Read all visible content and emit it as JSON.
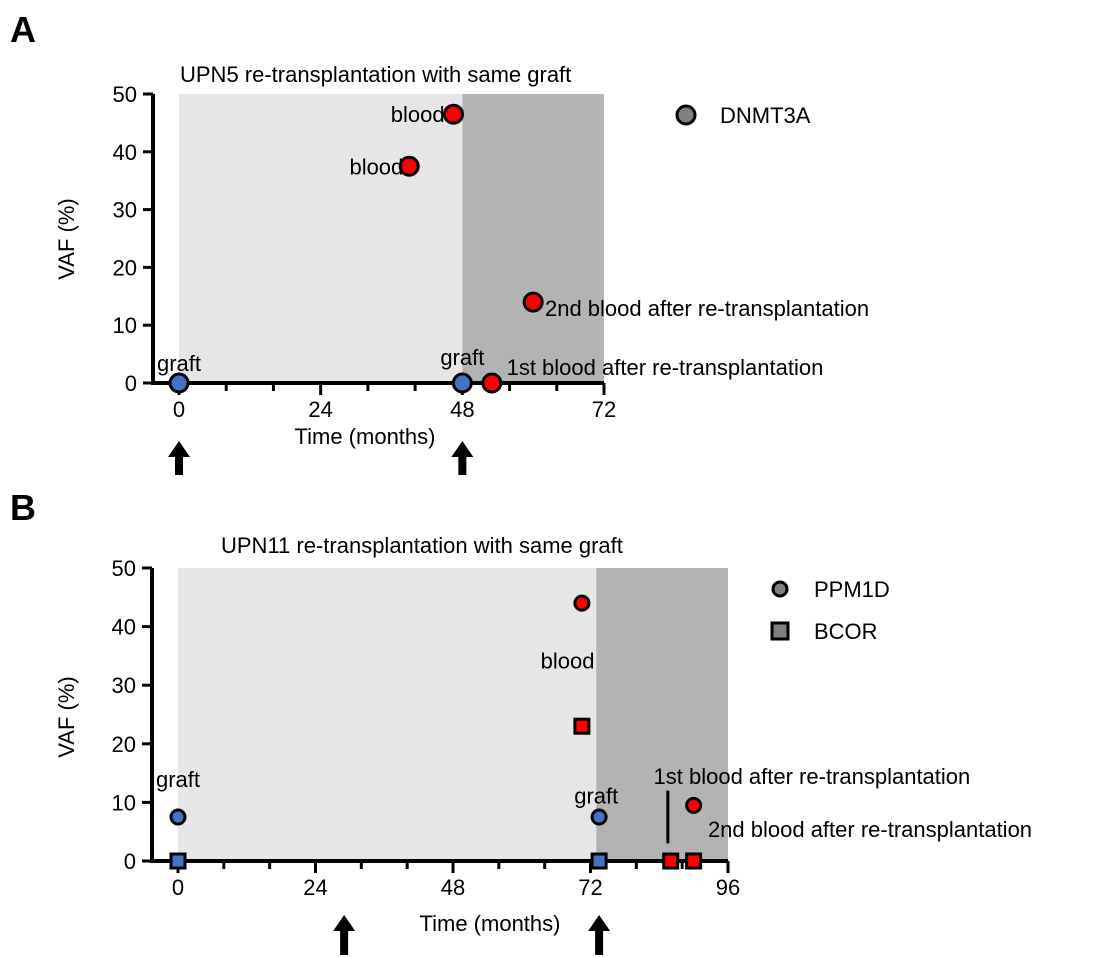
{
  "chart_data": [
    {
      "type": "scatter",
      "panel_label": "A",
      "title": "UPN5 re-transplantation with same graft",
      "xlabel": "Time (months)",
      "ylabel": "VAF (%)",
      "xlim": [
        0,
        72
      ],
      "ylim": [
        0,
        50
      ],
      "xticks": [
        0,
        24,
        48,
        72
      ],
      "yticks": [
        0,
        10,
        20,
        30,
        40,
        50
      ],
      "shaded_regions": [
        {
          "x0": 0,
          "x1": 48,
          "color": "#e6e6e6"
        },
        {
          "x0": 48,
          "x1": 72,
          "color": "#b3b3b3"
        }
      ],
      "series": [
        {
          "name": "DNMT3A",
          "marker": "circle",
          "points": [
            {
              "x": 0,
              "y": 0,
              "color": "#4472c4"
            },
            {
              "x": 39,
              "y": 37.5,
              "color": "#ff0000"
            },
            {
              "x": 46.5,
              "y": 46.5,
              "color": "#ff0000"
            },
            {
              "x": 48,
              "y": 0,
              "color": "#4472c4"
            },
            {
              "x": 53,
              "y": 0,
              "color": "#ff0000"
            },
            {
              "x": 60,
              "y": 14,
              "color": "#ff0000"
            }
          ]
        }
      ],
      "annotations": [
        {
          "text": "graft",
          "x": 0,
          "y": 3.5,
          "anchor": "middle"
        },
        {
          "text": "blood",
          "x": 38,
          "y": 37.5,
          "anchor": "end"
        },
        {
          "text": "blood",
          "x": 45,
          "y": 46.5,
          "anchor": "end"
        },
        {
          "text": "graft",
          "x": 48,
          "y": 4.5,
          "anchor": "middle"
        },
        {
          "text": "1st blood after re-transplantation",
          "x": 55.5,
          "y": 2.8,
          "anchor": "start"
        },
        {
          "text": "2nd blood after re-transplantation",
          "x": 62,
          "y": 13,
          "anchor": "start"
        }
      ],
      "arrows_at_x": [
        0,
        48
      ],
      "legend": [
        {
          "name": "DNMT3A",
          "marker": "circle"
        }
      ],
      "legend_placement": "top-right outside"
    },
    {
      "type": "scatter",
      "panel_label": "B",
      "title": "UPN11 re-transplantation with same graft",
      "xlabel": "Time (months)",
      "ylabel": "VAF (%)",
      "xlim": [
        0,
        96
      ],
      "ylim": [
        0,
        50
      ],
      "xticks": [
        0,
        24,
        48,
        72,
        96
      ],
      "yticks": [
        0,
        10,
        20,
        30,
        40,
        50
      ],
      "shaded_regions": [
        {
          "x0": 0,
          "x1": 73,
          "color": "#e6e6e6"
        },
        {
          "x0": 73,
          "x1": 96,
          "color": "#b3b3b3"
        }
      ],
      "series": [
        {
          "name": "PPM1D",
          "marker": "circle",
          "points": [
            {
              "x": 0,
              "y": 7.5,
              "color": "#4472c4"
            },
            {
              "x": 70.5,
              "y": 44,
              "color": "#ff0000"
            },
            {
              "x": 73.5,
              "y": 7.5,
              "color": "#4472c4"
            },
            {
              "x": 86,
              "y": 0,
              "color": "#ff0000"
            },
            {
              "x": 90,
              "y": 9.5,
              "color": "#ff0000"
            }
          ]
        },
        {
          "name": "BCOR",
          "marker": "square",
          "points": [
            {
              "x": 0,
              "y": 0,
              "color": "#4472c4"
            },
            {
              "x": 70.5,
              "y": 23,
              "color": "#ff0000"
            },
            {
              "x": 73.5,
              "y": 0,
              "color": "#4472c4"
            },
            {
              "x": 86,
              "y": 0,
              "color": "#ff0000"
            },
            {
              "x": 90,
              "y": 0,
              "color": "#ff0000"
            }
          ]
        }
      ],
      "annotations": [
        {
          "text": "blood",
          "x": 68,
          "y": 34.2,
          "anchor": "middle"
        },
        {
          "text": "graft",
          "x": 0,
          "y": 14,
          "anchor": "middle"
        },
        {
          "text": "graft",
          "x": 73,
          "y": 11.2,
          "anchor": "middle"
        },
        {
          "text": "1st blood after re-transplantation",
          "x": 83,
          "y": 14.5,
          "anchor": "start"
        },
        {
          "text": "2nd blood after re-transplantation",
          "x": 92.5,
          "y": 5.5,
          "anchor": "start"
        }
      ],
      "annotation_lines": [
        {
          "x": 85.5,
          "y0": 12,
          "y1": 3
        }
      ],
      "arrows_at_x": [
        29,
        73.5
      ],
      "legend": [
        {
          "name": "PPM1D",
          "marker": "circle"
        },
        {
          "name": "BCOR",
          "marker": "square"
        }
      ],
      "legend_placement": "top-right outside"
    }
  ]
}
